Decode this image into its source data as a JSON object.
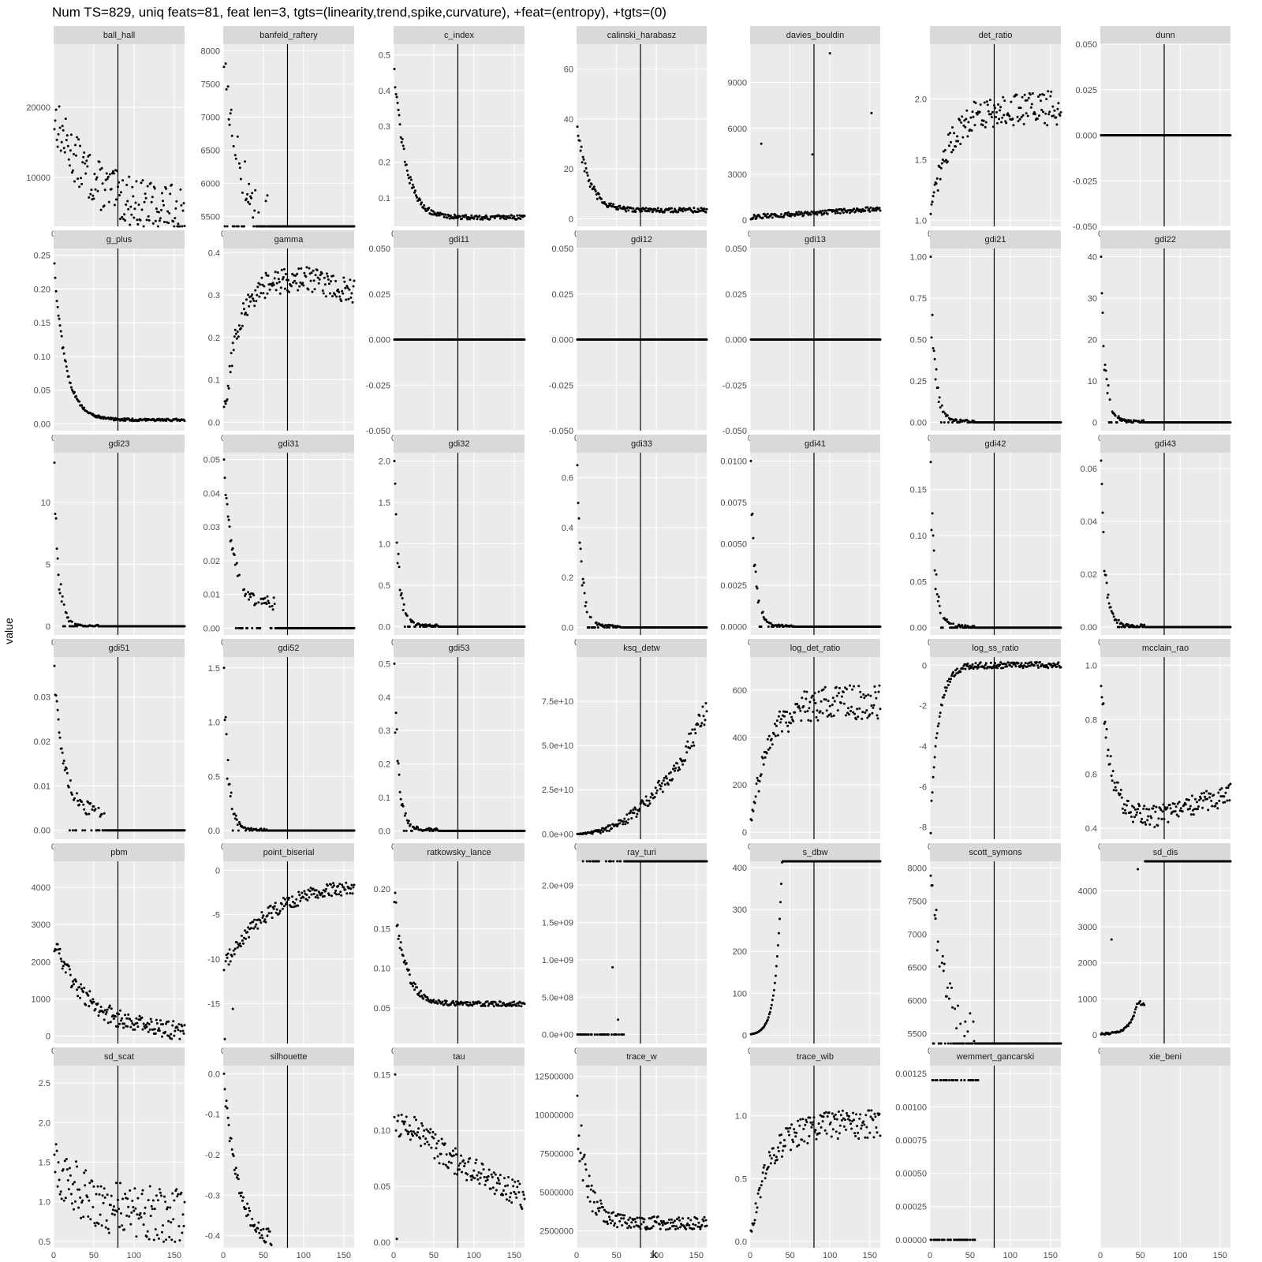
{
  "chart_data": {
    "type": "scatter",
    "title": "Num TS=829, uniq feats=81, feat len=3, tgts=(linearity,trend,spike,curvature), +feat=(entropy), +tgts=(0)",
    "xlabel": "k",
    "ylabel": "value",
    "xlim": [
      0,
      163
    ],
    "xticks": [
      0,
      50,
      100,
      150
    ],
    "vline_x": 80,
    "grid": true,
    "colors": {
      "panel_bg": "#ebebeb",
      "strip_bg": "#d9d9d9",
      "grid": "#ffffff",
      "points": "#000000",
      "vline": "#000000"
    },
    "panels": [
      {
        "name": "ball_hall",
        "ylim": [
          3000,
          29000
        ],
        "yticks": [
          10000,
          20000
        ],
        "ytick_labels": [
          "10000",
          "20000"
        ],
        "shape": "noisy_decay",
        "y0": 19000,
        "y_end": 5000,
        "spread": 3500
      },
      {
        "name": "banfeld_raftery",
        "ylim": [
          5350,
          8100
        ],
        "yticks": [
          5500,
          6000,
          6500,
          7000,
          7500,
          8000
        ],
        "ytick_labels": [
          "5500",
          "6000",
          "6500",
          "7000",
          "7500",
          "8000"
        ],
        "shape": "decay_clip",
        "y0": 8000,
        "y_end": 5350,
        "spread": 150
      },
      {
        "name": "c_index",
        "ylim": [
          0.02,
          0.53
        ],
        "yticks": [
          0.1,
          0.2,
          0.3,
          0.4,
          0.5
        ],
        "ytick_labels": [
          "0.1",
          "0.2",
          "0.3",
          "0.4",
          "0.5"
        ],
        "shape": "decay",
        "y0": 0.5,
        "y_end": 0.045,
        "spread": 0.01
      },
      {
        "name": "calinski_harabasz",
        "ylim": [
          -3,
          70
        ],
        "yticks": [
          0,
          20,
          40,
          60
        ],
        "ytick_labels": [
          "0",
          "20",
          "40",
          "60"
        ],
        "shape": "decay",
        "y0": 40,
        "y_end": 3.5,
        "spread": 1.5
      },
      {
        "name": "davies_bouldin",
        "ylim": [
          -400,
          11500
        ],
        "yticks": [
          0,
          3000,
          6000,
          9000
        ],
        "ytick_labels": [
          "0",
          "3000",
          "6000",
          "9000"
        ],
        "shape": "low_outliers",
        "y0": 50,
        "y_end": 600,
        "spread": 300
      },
      {
        "name": "det_ratio",
        "ylim": [
          0.95,
          2.45
        ],
        "yticks": [
          1.0,
          1.5,
          2.0
        ],
        "ytick_labels": [
          "1.0",
          "1.5",
          "2.0"
        ],
        "shape": "rise",
        "y0": 1.0,
        "y_end": 1.92,
        "spread": 0.12
      },
      {
        "name": "dunn",
        "ylim": [
          -0.05,
          0.05
        ],
        "yticks": [
          -0.05,
          -0.025,
          0,
          0.025,
          0.05
        ],
        "ytick_labels": [
          "-0.050",
          "-0.025",
          "0.000",
          "0.025",
          "0.050"
        ],
        "shape": "zero",
        "y0": 0,
        "y_end": 0,
        "spread": 0
      },
      {
        "name": "g_plus",
        "ylim": [
          -0.01,
          0.26
        ],
        "yticks": [
          0,
          0.05,
          0.1,
          0.15,
          0.2,
          0.25
        ],
        "ytick_labels": [
          "0.00",
          "0.05",
          "0.10",
          "0.15",
          "0.20",
          "0.25"
        ],
        "shape": "decay",
        "y0": 0.25,
        "y_end": 0.006,
        "spread": 0.003
      },
      {
        "name": "gamma",
        "ylim": [
          -0.02,
          0.41
        ],
        "yticks": [
          0,
          0.1,
          0.2,
          0.3,
          0.4
        ],
        "ytick_labels": [
          "0.0",
          "0.1",
          "0.2",
          "0.3",
          "0.4"
        ],
        "shape": "rise_hump",
        "y0": 0.0,
        "y_end": 0.31,
        "spread": 0.03
      },
      {
        "name": "gdi11",
        "ylim": [
          -0.05,
          0.05
        ],
        "yticks": [
          -0.05,
          -0.025,
          0,
          0.025,
          0.05
        ],
        "ytick_labels": [
          "-0.050",
          "-0.025",
          "0.000",
          "0.025",
          "0.050"
        ],
        "shape": "zero",
        "y0": 0,
        "y_end": 0,
        "spread": 0
      },
      {
        "name": "gdi12",
        "ylim": [
          -0.05,
          0.05
        ],
        "yticks": [
          -0.05,
          -0.025,
          0,
          0.025,
          0.05
        ],
        "ytick_labels": [
          "-0.050",
          "-0.025",
          "0.000",
          "0.025",
          "0.050"
        ],
        "shape": "zero",
        "y0": 0,
        "y_end": 0,
        "spread": 0
      },
      {
        "name": "gdi13",
        "ylim": [
          -0.05,
          0.05
        ],
        "yticks": [
          -0.05,
          -0.025,
          0,
          0.025,
          0.05
        ],
        "ytick_labels": [
          "-0.050",
          "-0.025",
          "0.000",
          "0.025",
          "0.050"
        ],
        "shape": "zero",
        "y0": 0,
        "y_end": 0,
        "spread": 0
      },
      {
        "name": "gdi21",
        "ylim": [
          -0.05,
          1.05
        ],
        "yticks": [
          0,
          0.25,
          0.5,
          0.75,
          1.0
        ],
        "ytick_labels": [
          "0.00",
          "0.25",
          "0.50",
          "0.75",
          "1.00"
        ],
        "shape": "spike_zero",
        "y0": 1.0,
        "y_end": 0,
        "spread": 0.02
      },
      {
        "name": "gdi22",
        "ylim": [
          -2,
          42
        ],
        "yticks": [
          0,
          10,
          20,
          30,
          40
        ],
        "ytick_labels": [
          "0",
          "10",
          "20",
          "30",
          "40"
        ],
        "shape": "spike_zero",
        "y0": 40,
        "y_end": 0,
        "spread": 0.5
      },
      {
        "name": "gdi23",
        "ylim": [
          -0.7,
          14
        ],
        "yticks": [
          0,
          5,
          10
        ],
        "ytick_labels": [
          "0",
          "5",
          "10"
        ],
        "shape": "spike_zero",
        "y0": 13.2,
        "y_end": 0,
        "spread": 0.1
      },
      {
        "name": "gdi31",
        "ylim": [
          -0.002,
          0.052
        ],
        "yticks": [
          0,
          0.01,
          0.02,
          0.03,
          0.04,
          0.05
        ],
        "ytick_labels": [
          "0.00",
          "0.01",
          "0.02",
          "0.03",
          "0.04",
          "0.05"
        ],
        "shape": "decay_then_zero",
        "y0": 0.05,
        "y_end": 0.007,
        "spread": 0.002
      },
      {
        "name": "gdi32",
        "ylim": [
          -0.1,
          2.1
        ],
        "yticks": [
          0,
          0.5,
          1.0,
          1.5,
          2.0
        ],
        "ytick_labels": [
          "0.0",
          "0.5",
          "1.0",
          "1.5",
          "2.0"
        ],
        "shape": "spike_zero",
        "y0": 2.0,
        "y_end": 0,
        "spread": 0.03
      },
      {
        "name": "gdi33",
        "ylim": [
          -0.03,
          0.7
        ],
        "yticks": [
          0,
          0.2,
          0.4,
          0.6
        ],
        "ytick_labels": [
          "0.0",
          "0.2",
          "0.4",
          "0.6"
        ],
        "shape": "spike_zero",
        "y0": 0.65,
        "y_end": 0,
        "spread": 0.01
      },
      {
        "name": "gdi41",
        "ylim": [
          -0.0005,
          0.0105
        ],
        "yticks": [
          0,
          0.0025,
          0.005,
          0.0075,
          0.01
        ],
        "ytick_labels": [
          "0.0000",
          "0.0025",
          "0.0050",
          "0.0075",
          "0.0100"
        ],
        "shape": "spike_zero",
        "y0": 0.01,
        "y_end": 0,
        "spread": 0.0001
      },
      {
        "name": "gdi42",
        "ylim": [
          -0.008,
          0.19
        ],
        "yticks": [
          0,
          0.05,
          0.1,
          0.15
        ],
        "ytick_labels": [
          "0.00",
          "0.05",
          "0.10",
          "0.15"
        ],
        "shape": "spike_zero",
        "y0": 0.18,
        "y_end": 0,
        "spread": 0.003
      },
      {
        "name": "gdi43",
        "ylim": [
          -0.003,
          0.066
        ],
        "yticks": [
          0,
          0.02,
          0.04,
          0.06
        ],
        "ytick_labels": [
          "0.00",
          "0.02",
          "0.04",
          "0.06"
        ],
        "shape": "spike_zero",
        "y0": 0.063,
        "y_end": 0,
        "spread": 0.001
      },
      {
        "name": "gdi51",
        "ylim": [
          -0.002,
          0.039
        ],
        "yticks": [
          0,
          0.01,
          0.02,
          0.03
        ],
        "ytick_labels": [
          "0.00",
          "0.01",
          "0.02",
          "0.03"
        ],
        "shape": "decay_then_zero",
        "y0": 0.037,
        "y_end": 0.004,
        "spread": 0.0015
      },
      {
        "name": "gdi52",
        "ylim": [
          -0.08,
          1.6
        ],
        "yticks": [
          0,
          0.5,
          1.0,
          1.5
        ],
        "ytick_labels": [
          "0.0",
          "0.5",
          "1.0",
          "1.5"
        ],
        "shape": "spike_zero",
        "y0": 1.5,
        "y_end": 0,
        "spread": 0.02
      },
      {
        "name": "gdi53",
        "ylim": [
          -0.025,
          0.52
        ],
        "yticks": [
          0,
          0.1,
          0.2,
          0.3,
          0.4,
          0.5
        ],
        "ytick_labels": [
          "0.0",
          "0.1",
          "0.2",
          "0.3",
          "0.4",
          "0.5"
        ],
        "shape": "spike_zero",
        "y0": 0.5,
        "y_end": 0,
        "spread": 0.008
      },
      {
        "name": "ksq_detw",
        "ylim": [
          -3000000000.0,
          100000000000
        ],
        "yticks": [
          0,
          25000000000,
          50000000000,
          75000000000
        ],
        "ytick_labels": [
          "0.0e+00",
          "2.5e+10",
          "5.0e+10",
          "7.5e+10"
        ],
        "shape": "quad_rise",
        "y0": 0,
        "y_end": 70000000000,
        "spread": 7000000000
      },
      {
        "name": "log_det_ratio",
        "ylim": [
          -30,
          740
        ],
        "yticks": [
          0,
          200,
          400,
          600
        ],
        "ytick_labels": [
          "0",
          "200",
          "400",
          "600"
        ],
        "shape": "rise",
        "y0": 0,
        "y_end": 550,
        "spread": 60
      },
      {
        "name": "log_ss_ratio",
        "ylim": [
          -8.6,
          0.4
        ],
        "yticks": [
          -8,
          -6,
          -4,
          -2,
          0
        ],
        "ytick_labels": [
          "-8",
          "-6",
          "-4",
          "-2",
          "0"
        ],
        "shape": "rise_fast",
        "y0": -8.3,
        "y_end": 0,
        "spread": 0.15
      },
      {
        "name": "mcclain_rao",
        "ylim": [
          0.36,
          1.03
        ],
        "yticks": [
          0.4,
          0.6,
          0.8,
          1.0
        ],
        "ytick_labels": [
          "0.4",
          "0.6",
          "0.8",
          "1.0"
        ],
        "shape": "u_shape",
        "y0": 1.0,
        "y_end": 0.52,
        "spread": 0.04
      },
      {
        "name": "pbm",
        "ylim": [
          -200,
          4700
        ],
        "yticks": [
          0,
          1000,
          2000,
          3000,
          4000
        ],
        "ytick_labels": [
          "0",
          "1000",
          "2000",
          "3000",
          "4000"
        ],
        "shape": "noisy_decay",
        "y0": 2500,
        "y_end": 60,
        "spread": 250
      },
      {
        "name": "point_biserial",
        "ylim": [
          -19.5,
          1
        ],
        "yticks": [
          -15,
          -10,
          -5,
          0
        ],
        "ytick_labels": [
          "-15",
          "-10",
          "-5",
          "0"
        ],
        "shape": "rise_neg",
        "y0": -11,
        "y_end": -2.7,
        "spread": 0.8
      },
      {
        "name": "ratkowsky_lance",
        "ylim": [
          0.005,
          0.235
        ],
        "yticks": [
          0.05,
          0.1,
          0.15,
          0.2
        ],
        "ytick_labels": [
          "0.05",
          "0.10",
          "0.15",
          "0.20"
        ],
        "shape": "decay",
        "y0": 0.2,
        "y_end": 0.055,
        "spread": 0.005
      },
      {
        "name": "ray_turi",
        "ylim": [
          -120000000,
          2320000000
        ],
        "yticks": [
          0,
          500000000,
          1000000000,
          1500000000,
          2000000000
        ],
        "ytick_labels": [
          "0.0e+00",
          "5.0e+08",
          "1.0e+09",
          "1.5e+09",
          "2.0e+09"
        ],
        "shape": "low_with_top_clip",
        "y0": 0,
        "y_end": 0,
        "spread": 0
      },
      {
        "name": "s_dbw",
        "ylim": [
          -20,
          415
        ],
        "yticks": [
          0,
          100,
          200,
          300,
          400
        ],
        "ytick_labels": [
          "0",
          "100",
          "200",
          "300",
          "400"
        ],
        "shape": "exp_rise_clip",
        "y0": 0,
        "y_end": 415,
        "spread": 10
      },
      {
        "name": "scott_symons",
        "ylim": [
          5350,
          8100
        ],
        "yticks": [
          5500,
          6000,
          6500,
          7000,
          7500,
          8000
        ],
        "ytick_labels": [
          "5500",
          "6000",
          "6500",
          "7000",
          "7500",
          "8000"
        ],
        "shape": "decay_clip",
        "y0": 8000,
        "y_end": 5350,
        "spread": 150
      },
      {
        "name": "sd_dis",
        "ylim": [
          -240,
          4820
        ],
        "yticks": [
          0,
          1000,
          2000,
          3000,
          4000
        ],
        "ytick_labels": [
          "0",
          "1000",
          "2000",
          "3000",
          "4000"
        ],
        "shape": "sd_dis",
        "y0": 0,
        "y_end": 4820,
        "spread": 50
      },
      {
        "name": "sd_scat",
        "ylim": [
          0.42,
          2.72
        ],
        "yticks": [
          0.5,
          1.0,
          1.5,
          2.0,
          2.5
        ],
        "ytick_labels": [
          "0.5",
          "1.0",
          "1.5",
          "2.0",
          "2.5"
        ],
        "shape": "noisy_decay",
        "y0": 1.5,
        "y_end": 0.8,
        "spread": 0.35
      },
      {
        "name": "silhouette",
        "ylim": [
          -0.43,
          0.02
        ],
        "yticks": [
          -0.4,
          -0.3,
          -0.2,
          -0.1,
          0
        ],
        "ytick_labels": [
          "-0.4",
          "-0.3",
          "-0.2",
          "-0.1",
          "0.0"
        ],
        "shape": "silhouette",
        "y0": 0,
        "y_end": -0.4,
        "spread": 0.01
      },
      {
        "name": "tau",
        "ylim": [
          -0.005,
          0.158
        ],
        "yticks": [
          0,
          0.05,
          0.1,
          0.15
        ],
        "ytick_labels": [
          "0.00",
          "0.05",
          "0.10",
          "0.15"
        ],
        "shape": "hump_decay",
        "y0": 0.06,
        "y_end": 0.04,
        "spread": 0.008
      },
      {
        "name": "trace_w",
        "ylim": [
          1400000,
          13200000
        ],
        "yticks": [
          2500000,
          5000000,
          7500000,
          10000000,
          12500000
        ],
        "ytick_labels": [
          "2500000",
          "5000000",
          "7500000",
          "10000000",
          "12500000"
        ],
        "shape": "decay",
        "y0": 10000000,
        "y_end": 3000000,
        "spread": 700000
      },
      {
        "name": "trace_wib",
        "ylim": [
          -0.05,
          1.4
        ],
        "yticks": [
          0,
          0.5,
          1.0
        ],
        "ytick_labels": [
          "0.0",
          "0.5",
          "1.0"
        ],
        "shape": "rise",
        "y0": 0,
        "y_end": 0.93,
        "spread": 0.1
      },
      {
        "name": "wemmert_gancarski",
        "ylim": [
          -6e-05,
          0.00131
        ],
        "yticks": [
          0,
          0.00025,
          0.0005,
          0.00075,
          0.001,
          0.00125
        ],
        "ytick_labels": [
          "0.00000",
          "0.00025",
          "0.00050",
          "0.00075",
          "0.00100",
          "0.00125"
        ],
        "shape": "binary",
        "y0": 0.0012,
        "y_end": 0,
        "spread": 0
      },
      {
        "name": "xie_beni",
        "ylim": [
          0,
          1
        ],
        "yticks": [],
        "ytick_labels": [],
        "shape": "empty",
        "y0": 0,
        "y_end": 0,
        "spread": 0
      }
    ]
  }
}
